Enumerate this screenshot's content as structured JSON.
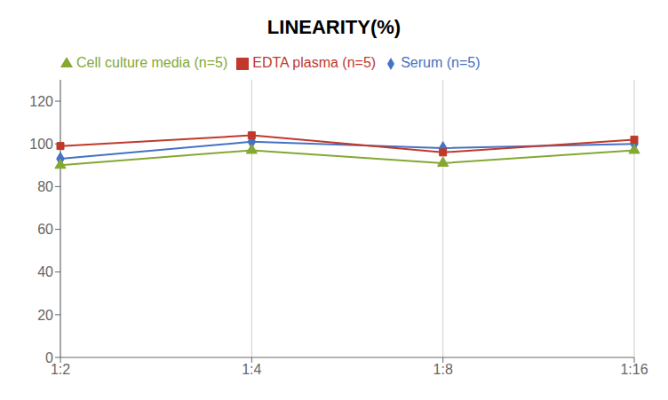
{
  "chart_data": {
    "type": "line",
    "title": "LINEARITY(%)",
    "categories": [
      "1:2",
      "1:4",
      "1:8",
      "1:16"
    ],
    "series": [
      {
        "name": "Serum (n=5)",
        "color": "#4472c4",
        "marker": "diamond",
        "values": [
          93,
          101,
          98,
          100
        ]
      },
      {
        "name": "EDTA plasma (n=5)",
        "color": "#c0392b",
        "marker": "square",
        "values": [
          99,
          104,
          96,
          102
        ]
      },
      {
        "name": "Cell culture media (n=5)",
        "color": "#84a832",
        "marker": "triangle",
        "values": [
          90,
          97,
          91,
          97
        ]
      }
    ],
    "ylim": [
      0,
      130
    ],
    "yticks": [
      0,
      20,
      40,
      60,
      80,
      100,
      120
    ],
    "grid": "x",
    "legend": "top"
  }
}
